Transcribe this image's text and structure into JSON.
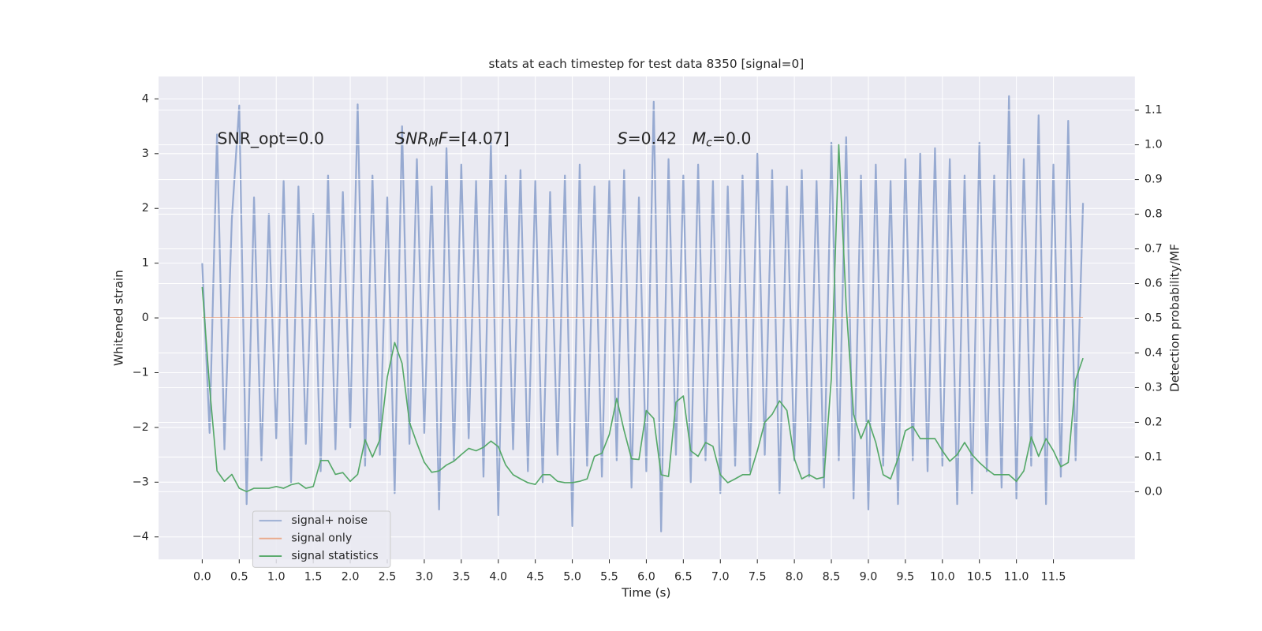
{
  "chart_data": {
    "type": "line",
    "title": "stats at each timestep for test data 8350 [signal=0]",
    "x_label": "Time (s)",
    "y_label": "Whitened strain",
    "y2_label": "Detection probability/MF",
    "grid": true,
    "legend": "lower left",
    "xlim": [
      -0.59,
      12.6
    ],
    "ylim": [
      -4.41,
      4.41
    ],
    "y2lim": [
      -0.195,
      1.197
    ],
    "xticks": [
      {
        "value": 0,
        "label": "0.0"
      },
      {
        "value": 0.5,
        "label": "0.5"
      },
      {
        "value": 1,
        "label": "1.0"
      },
      {
        "value": 1.5,
        "label": "1.5"
      },
      {
        "value": 2,
        "label": "2.0"
      },
      {
        "value": 2.5,
        "label": "2.5"
      },
      {
        "value": 3,
        "label": "3.0"
      },
      {
        "value": 3.5,
        "label": "3.5"
      },
      {
        "value": 4,
        "label": "4.0"
      },
      {
        "value": 4.5,
        "label": "4.5"
      },
      {
        "value": 5,
        "label": "5.0"
      },
      {
        "value": 5.5,
        "label": "5.5"
      },
      {
        "value": 6,
        "label": "6.0"
      },
      {
        "value": 6.5,
        "label": "6.5"
      },
      {
        "value": 7,
        "label": "7.0"
      },
      {
        "value": 7.5,
        "label": "7.5"
      },
      {
        "value": 8,
        "label": "8.0"
      },
      {
        "value": 8.5,
        "label": "8.5"
      },
      {
        "value": 9,
        "label": "9.0"
      },
      {
        "value": 9.5,
        "label": "9.5"
      },
      {
        "value": 10,
        "label": "10.0"
      },
      {
        "value": 10.5,
        "label": "10.5"
      },
      {
        "value": 11,
        "label": "11.0"
      },
      {
        "value": 11.5,
        "label": "11.5"
      }
    ],
    "yticks": [
      {
        "value": -4,
        "label": "−4"
      },
      {
        "value": -3,
        "label": "−3"
      },
      {
        "value": -2,
        "label": "−2"
      },
      {
        "value": -1,
        "label": "−1"
      },
      0,
      1,
      2,
      3,
      4
    ],
    "y2ticks": [
      {
        "value": 0,
        "label": "0.0"
      },
      {
        "value": 0.1,
        "label": "0.1"
      },
      {
        "value": 0.2,
        "label": "0.2"
      },
      {
        "value": 0.3,
        "label": "0.3"
      },
      {
        "value": 0.4,
        "label": "0.4"
      },
      {
        "value": 0.5,
        "label": "0.5"
      },
      {
        "value": 0.6,
        "label": "0.6"
      },
      {
        "value": 0.7,
        "label": "0.7"
      },
      {
        "value": 0.8,
        "label": "0.8"
      },
      {
        "value": 0.9,
        "label": "0.9"
      },
      {
        "value": 1,
        "label": "1.0"
      },
      {
        "value": 1.1,
        "label": "1.1"
      }
    ],
    "annotations": [
      [
        {
          "text": "SNR_opt=0.0"
        }
      ],
      [
        {
          "text": "SNR",
          "italic": true
        },
        {
          "text": "M",
          "italic": true,
          "sub": true
        },
        {
          "text": "F",
          "italic": true
        },
        {
          "text": "=[4.07]"
        }
      ],
      [
        {
          "text": "S",
          "italic": true
        },
        {
          "text": "=0.42   "
        },
        {
          "text": "M",
          "italic": true
        },
        {
          "text": "c",
          "italic": true,
          "sub": true
        },
        {
          "text": "=0.0"
        }
      ]
    ],
    "x": [
      0.0,
      0.1,
      0.2,
      0.3,
      0.4,
      0.5,
      0.6,
      0.7,
      0.8,
      0.9,
      1.0,
      1.1,
      1.2,
      1.3,
      1.4,
      1.5,
      1.6,
      1.7,
      1.8,
      1.9,
      2.0,
      2.1,
      2.2,
      2.3,
      2.4,
      2.5,
      2.6,
      2.7,
      2.8,
      2.9,
      3.0,
      3.1,
      3.2,
      3.3,
      3.4,
      3.5,
      3.6,
      3.7,
      3.8,
      3.9,
      4.0,
      4.1,
      4.2,
      4.3,
      4.4,
      4.5,
      4.6,
      4.7,
      4.8,
      4.9,
      5.0,
      5.1,
      5.2,
      5.3,
      5.4,
      5.5,
      5.6,
      5.7,
      5.8,
      5.9,
      6.0,
      6.1,
      6.2,
      6.3,
      6.4,
      6.5,
      6.6,
      6.7,
      6.8,
      6.9,
      7.0,
      7.1,
      7.2,
      7.3,
      7.4,
      7.5,
      7.6,
      7.7,
      7.8,
      7.9,
      8.0,
      8.1,
      8.2,
      8.3,
      8.4,
      8.5,
      8.6,
      8.7,
      8.8,
      8.9,
      9.0,
      9.1,
      9.2,
      9.3,
      9.4,
      9.5,
      9.6,
      9.7,
      9.8,
      9.9,
      10.0,
      10.1,
      10.2,
      10.3,
      10.4,
      10.5,
      10.6,
      10.7,
      10.8,
      10.9,
      11.0,
      11.1,
      11.2,
      11.3,
      11.4,
      11.5,
      11.6,
      11.7,
      11.8,
      11.9
    ],
    "series": [
      {
        "name": "signal+ noise",
        "color": "#97aad1",
        "axis": "y",
        "values": [
          1.0,
          -2.1,
          3.35,
          -2.4,
          1.8,
          3.88,
          -3.4,
          2.2,
          -2.6,
          1.9,
          -2.2,
          2.5,
          -3.0,
          2.4,
          -2.3,
          1.9,
          -2.8,
          2.6,
          -2.4,
          2.3,
          -2.0,
          3.9,
          -2.7,
          2.6,
          -2.5,
          2.2,
          -3.2,
          3.5,
          -2.3,
          2.9,
          -2.1,
          2.4,
          -3.5,
          3.1,
          -2.6,
          2.8,
          -2.2,
          2.5,
          -2.9,
          3.2,
          -3.6,
          2.6,
          -2.4,
          2.7,
          -2.8,
          2.5,
          -3.0,
          2.3,
          -2.5,
          2.6,
          -3.8,
          2.8,
          -2.7,
          2.4,
          -2.9,
          2.5,
          -2.6,
          2.7,
          -3.1,
          2.2,
          -2.8,
          3.95,
          -3.9,
          2.9,
          -2.5,
          2.6,
          -3.0,
          2.8,
          -2.6,
          2.5,
          -3.2,
          2.4,
          -2.7,
          2.6,
          -2.8,
          3.0,
          -2.5,
          2.7,
          -3.2,
          2.4,
          -2.6,
          2.7,
          -2.9,
          2.5,
          -3.1,
          3.2,
          -2.6,
          3.3,
          -3.3,
          2.6,
          -3.5,
          2.8,
          -2.7,
          2.5,
          -3.4,
          2.9,
          -2.6,
          3.0,
          -2.8,
          3.1,
          -2.7,
          2.9,
          -3.4,
          2.6,
          -3.2,
          3.2,
          -2.8,
          2.6,
          -3.1,
          4.05,
          -3.3,
          2.9,
          -2.7,
          3.7,
          -3.4,
          2.8,
          -2.9,
          3.6,
          -2.6,
          2.1
        ]
      },
      {
        "name": "signal only",
        "color": "#eaa98a",
        "axis": "y",
        "values": [
          0,
          0,
          0,
          0,
          0,
          0,
          0,
          0,
          0,
          0,
          0,
          0,
          0,
          0,
          0,
          0,
          0,
          0,
          0,
          0,
          0,
          0,
          0,
          0,
          0,
          0,
          0,
          0,
          0,
          0,
          0,
          0,
          0,
          0,
          0,
          0,
          0,
          0,
          0,
          0,
          0,
          0,
          0,
          0,
          0,
          0,
          0,
          0,
          0,
          0,
          0,
          0,
          0,
          0,
          0,
          0,
          0,
          0,
          0,
          0,
          0,
          0,
          0,
          0,
          0,
          0,
          0,
          0,
          0,
          0,
          0,
          0,
          0,
          0,
          0,
          0,
          0,
          0,
          0,
          0,
          0,
          0,
          0,
          0,
          0,
          0,
          0,
          0,
          0,
          0,
          0,
          0,
          0,
          0,
          0,
          0,
          0,
          0,
          0,
          0,
          0,
          0,
          0,
          0,
          0,
          0,
          0,
          0,
          0,
          0,
          0,
          0,
          0,
          0,
          0,
          0,
          0,
          0,
          0,
          0
        ]
      },
      {
        "name": "signal statistics",
        "color": "#55a868",
        "axis": "y2",
        "values": [
          0.59,
          0.3,
          0.06,
          0.03,
          0.05,
          0.01,
          0.0,
          0.01,
          0.01,
          0.01,
          0.015,
          0.01,
          0.02,
          0.025,
          0.01,
          0.015,
          0.09,
          0.09,
          0.05,
          0.055,
          0.03,
          0.05,
          0.15,
          0.1,
          0.15,
          0.33,
          0.43,
          0.37,
          0.2,
          0.14,
          0.085,
          0.056,
          0.06,
          0.077,
          0.088,
          0.107,
          0.125,
          0.118,
          0.128,
          0.146,
          0.13,
          0.077,
          0.049,
          0.037,
          0.026,
          0.021,
          0.049,
          0.049,
          0.03,
          0.026,
          0.026,
          0.03,
          0.037,
          0.102,
          0.111,
          0.165,
          0.269,
          0.176,
          0.095,
          0.093,
          0.234,
          0.211,
          0.049,
          0.044,
          0.258,
          0.276,
          0.118,
          0.102,
          0.142,
          0.131,
          0.049,
          0.026,
          0.037,
          0.049,
          0.049,
          0.118,
          0.2,
          0.223,
          0.262,
          0.234,
          0.095,
          0.037,
          0.049,
          0.037,
          0.042,
          0.327,
          1.0,
          0.536,
          0.223,
          0.153,
          0.206,
          0.142,
          0.049,
          0.037,
          0.095,
          0.176,
          0.188,
          0.153,
          0.153,
          0.153,
          0.118,
          0.088,
          0.107,
          0.142,
          0.107,
          0.084,
          0.065,
          0.049,
          0.049,
          0.049,
          0.03,
          0.06,
          0.158,
          0.102,
          0.153,
          0.118,
          0.072,
          0.084,
          0.323,
          0.385
        ]
      }
    ]
  }
}
